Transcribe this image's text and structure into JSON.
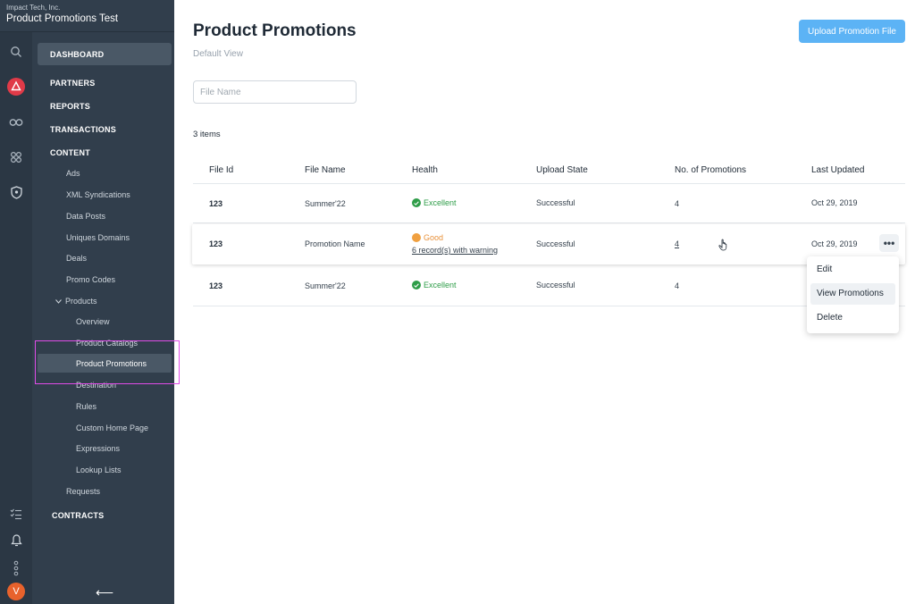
{
  "account": {
    "company": "Impact Tech, Inc.",
    "name": "Product Promotions Test"
  },
  "nav": {
    "dashboard": "DASHBOARD",
    "partners": "PARTNERS",
    "reports": "REPORTS",
    "transactions": "TRANSACTIONS",
    "content": "CONTENT",
    "content_items": [
      "Ads",
      "XML Syndications",
      "Data Posts",
      "Uniques Domains",
      "Deals",
      "Promo Codes"
    ],
    "products": "Products",
    "product_items": [
      "Overview",
      "Product Catalogs",
      "Product Promotions",
      "Destination",
      "Rules",
      "Custom Home Page",
      "Expressions",
      "Lookup Lists"
    ],
    "requests": "Requests",
    "contracts": "CONTRACTS",
    "active_item": "Product Promotions",
    "collapse_glyph": "⟵",
    "avatar_letter": "V"
  },
  "page": {
    "title": "Product Promotions",
    "subtitle": "Default View",
    "upload_label": "Upload Promotion File",
    "search_placeholder": "File Name",
    "count": "3 items"
  },
  "table": {
    "columns": [
      "File Id",
      "File Name",
      "Health",
      "Upload State",
      "No. of Promotions",
      "Last Updated"
    ],
    "rows": [
      {
        "file_id": "123",
        "file_name": "Summer'22",
        "health": "Excellent",
        "health_note": "",
        "upload_state": "Successful",
        "promotions": "4",
        "last_updated": "Oct 29, 2019"
      },
      {
        "file_id": "123",
        "file_name": "Promotion Name",
        "health": "Good",
        "health_note": "6 record(s) with warning",
        "upload_state": "Successful",
        "promotions": "4",
        "last_updated": "Oct 29, 2019"
      },
      {
        "file_id": "123",
        "file_name": "Summer'22",
        "health": "Excellent",
        "health_note": "",
        "upload_state": "Successful",
        "promotions": "4",
        "last_updated": ""
      }
    ]
  },
  "row_menu": {
    "more_glyph": "•••",
    "items": [
      "Edit",
      "View Promotions",
      "Delete"
    ],
    "active": "View Promotions"
  },
  "colors": {
    "sidebar": "#313e4c",
    "accent": "#5cb3f5",
    "success": "#2e9d48",
    "warning": "#f0a040",
    "highlight": "#e04ce8"
  }
}
